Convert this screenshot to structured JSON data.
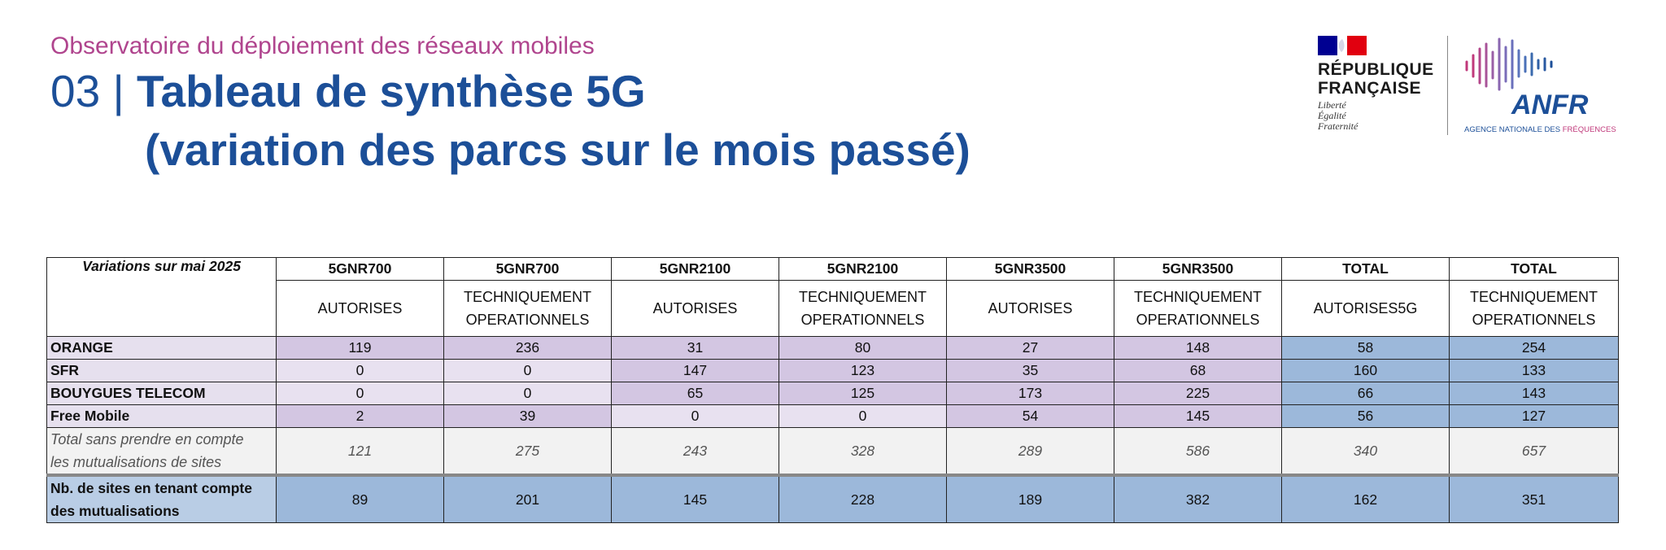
{
  "header": {
    "subtitle": "Observatoire du déploiement des réseaux mobiles",
    "number": "03 | ",
    "title_line1": "Tableau de synthèse 5G",
    "title_line2": "(variation des parcs sur le mois passé)"
  },
  "logos": {
    "republique": {
      "line1": "RÉPUBLIQUE",
      "line2": "FRANÇAISE",
      "motto": [
        "Liberté",
        "Égalité",
        "Fraternité"
      ],
      "colors": {
        "blue": "#000091",
        "red": "#e1000f"
      }
    },
    "anfr": {
      "name": "ANFR",
      "sub_main": "AGENCE NATIONALE DES ",
      "sub_accent": "FRÉQUENCES",
      "colors": {
        "blue": "#1c4f98",
        "pink": "#c0397b"
      }
    }
  },
  "table": {
    "corner_label": "Variations sur mai 2025",
    "bands": [
      "5GNR700",
      "5GNR700",
      "5GNR2100",
      "5GNR2100",
      "5GNR3500",
      "5GNR3500",
      "TOTAL",
      "TOTAL"
    ],
    "statuses": [
      [
        "AUTORISES"
      ],
      [
        "TECHNIQUEMENT",
        "OPERATIONNELS"
      ],
      [
        "AUTORISES"
      ],
      [
        "TECHNIQUEMENT",
        "OPERATIONNELS"
      ],
      [
        "AUTORISES"
      ],
      [
        "TECHNIQUEMENT",
        "OPERATIONNELS"
      ],
      [
        "AUTORISES5G"
      ],
      [
        "TECHNIQUEMENT",
        "OPERATIONNELS"
      ]
    ],
    "rows": [
      {
        "operator": "ORANGE",
        "values": [
          "119",
          "236",
          "31",
          "80",
          "27",
          "148",
          "58",
          "254"
        ]
      },
      {
        "operator": "SFR",
        "values": [
          "0",
          "0",
          "147",
          "123",
          "35",
          "68",
          "160",
          "133"
        ]
      },
      {
        "operator": "BOUYGUES TELECOM",
        "values": [
          "0",
          "0",
          "65",
          "125",
          "173",
          "225",
          "66",
          "143"
        ]
      },
      {
        "operator": "Free Mobile",
        "values": [
          "2",
          "39",
          "0",
          "0",
          "54",
          "145",
          "56",
          "127"
        ]
      }
    ],
    "cell_colors": [
      [
        "mid",
        "mid",
        "mid",
        "mid",
        "mid",
        "mid",
        "total",
        "total"
      ],
      [
        "light",
        "light",
        "mid",
        "mid",
        "mid",
        "mid",
        "total",
        "total"
      ],
      [
        "light",
        "light",
        "mid",
        "mid",
        "mid",
        "mid",
        "total",
        "total"
      ],
      [
        "mid",
        "mid",
        "light",
        "light",
        "mid",
        "mid",
        "total",
        "total"
      ]
    ],
    "total_row": {
      "label_line1": "Total sans prendre en compte",
      "label_line2": "les mutualisations de sites",
      "values": [
        "121",
        "275",
        "243",
        "328",
        "289",
        "586",
        "340",
        "657"
      ]
    },
    "sites_row": {
      "label_line1": "Nb. de sites en tenant compte",
      "label_line2": "des mutualisations",
      "values": [
        "89",
        "201",
        "145",
        "228",
        "189",
        "382",
        "162",
        "351"
      ]
    }
  }
}
